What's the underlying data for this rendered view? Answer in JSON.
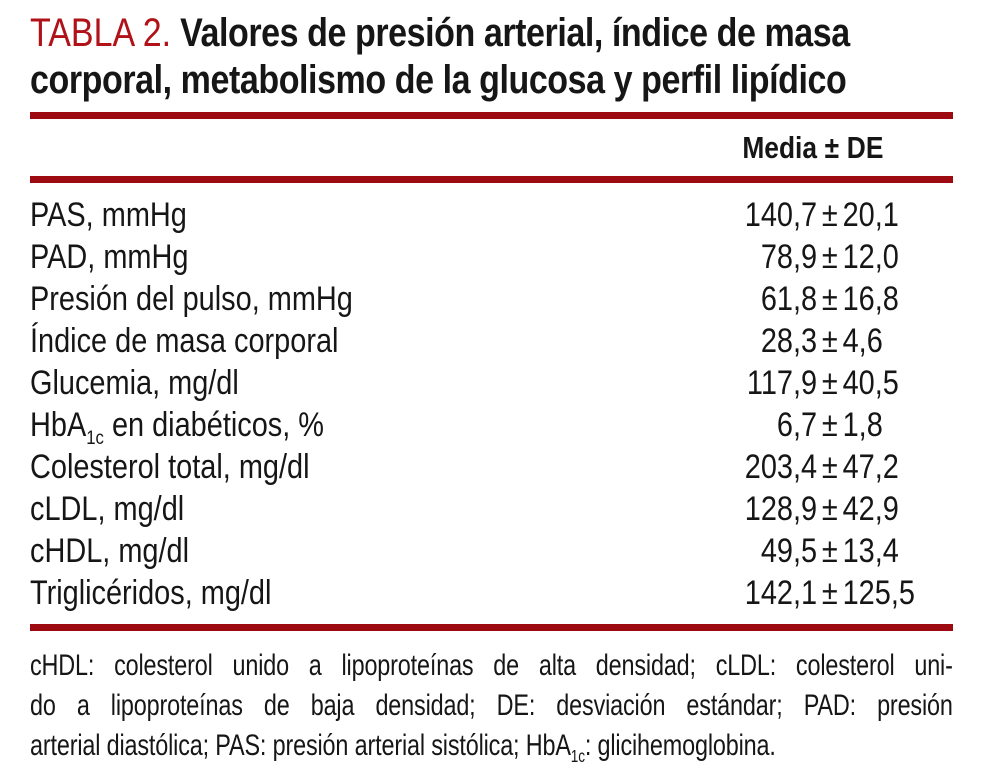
{
  "title": {
    "number": "TABLA 2.",
    "line1": "Valores de presión arterial, índice de masa",
    "line2": "corporal, metabolismo de la glucosa y perfil lipídico"
  },
  "header": {
    "mean": "Media",
    "pm": "±",
    "sd": "DE"
  },
  "pm": "±",
  "rows": [
    {
      "label_pre": "PAS, mmHg",
      "label_sub": "",
      "label_post": "",
      "mean": "140,7",
      "sd": "20,1"
    },
    {
      "label_pre": "PAD, mmHg",
      "label_sub": "",
      "label_post": "",
      "mean": "78,9",
      "sd": "12,0"
    },
    {
      "label_pre": "Presión del pulso, mmHg",
      "label_sub": "",
      "label_post": "",
      "mean": "61,8",
      "sd": "16,8"
    },
    {
      "label_pre": "Índice de masa corporal",
      "label_sub": "",
      "label_post": "",
      "mean": "28,3",
      "sd": "4,6"
    },
    {
      "label_pre": "Glucemia, mg/dl",
      "label_sub": "",
      "label_post": "",
      "mean": "117,9",
      "sd": "40,5"
    },
    {
      "label_pre": "HbA",
      "label_sub": "1c",
      "label_post": " en diabéticos, %",
      "mean": "6,7",
      "sd": "1,8"
    },
    {
      "label_pre": "Colesterol total, mg/dl",
      "label_sub": "",
      "label_post": "",
      "mean": "203,4",
      "sd": "47,2"
    },
    {
      "label_pre": "cLDL, mg/dl",
      "label_sub": "",
      "label_post": "",
      "mean": "128,9",
      "sd": "42,9"
    },
    {
      "label_pre": "cHDL, mg/dl",
      "label_sub": "",
      "label_post": "",
      "mean": "49,5",
      "sd": "13,4"
    },
    {
      "label_pre": "Triglicéridos, mg/dl",
      "label_sub": "",
      "label_post": "",
      "mean": "142,1",
      "sd": "125,5"
    }
  ],
  "footnote": {
    "line1": "cHDL: colesterol unido a lipoproteínas de alta densidad; cLDL: colesterol uni-",
    "line2": "do a lipoproteínas de baja densidad; DE: desviación estándar; PAD: presión",
    "line3_pre": "arterial diastólica; PAS: presión arterial sistólica; HbA",
    "line3_sub": "1c",
    "line3_post": ": glicihemoglobina."
  },
  "colors": {
    "title_red": "#b01218",
    "rule_red": "#9e0a12"
  }
}
